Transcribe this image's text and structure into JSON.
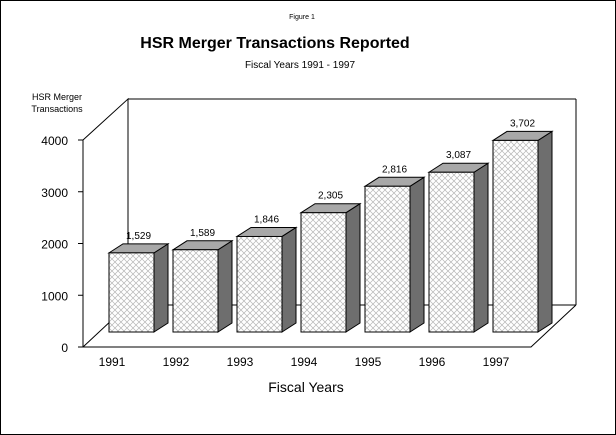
{
  "figure_label": "Figure 1",
  "chart_data": {
    "type": "bar",
    "title": "HSR Merger Transactions Reported",
    "subtitle": "Fiscal Years 1991 - 1997",
    "ylabel_line1": "HSR Merger",
    "ylabel_line2": "Transactions",
    "xlabel": "Fiscal Years",
    "categories": [
      "1991",
      "1992",
      "1993",
      "1994",
      "1995",
      "1996",
      "1997"
    ],
    "values": [
      1529,
      1589,
      1846,
      2305,
      2816,
      3087,
      3702
    ],
    "data_labels": [
      "1,529",
      "1,589",
      "1,846",
      "2,305",
      "2,816",
      "3,087",
      "3,702"
    ],
    "yticks": [
      "0",
      "1000",
      "2000",
      "3000",
      "4000"
    ],
    "ylim": [
      0,
      4000
    ],
    "three_d": true,
    "grid": false,
    "legend": "none",
    "colors": {
      "bar_front": "#ffffff",
      "bar_side": "#6e6e6e",
      "bar_top": "#a8a8a8",
      "pattern": "#b5b5b5"
    }
  }
}
